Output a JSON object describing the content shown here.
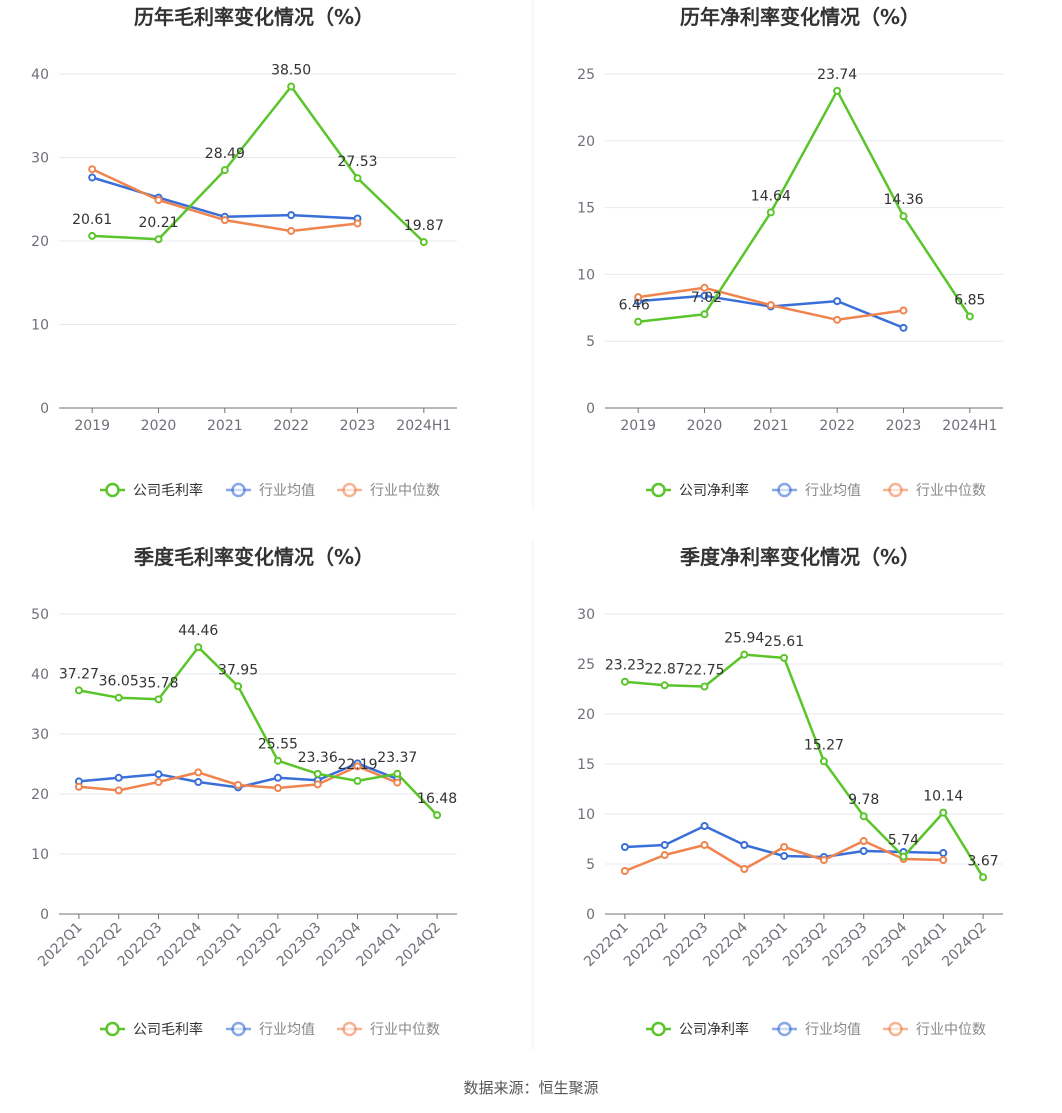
{
  "colors": {
    "company": "#5ac52a",
    "industry_avg": "#3a6fd8",
    "industry_median": "#f0844f"
  },
  "source": "数据来源：恒生聚源",
  "chart_data": [
    {
      "type": "line",
      "title": "历年毛利率变化情况（%）",
      "categories": [
        "2019",
        "2020",
        "2021",
        "2022",
        "2023",
        "2024H1"
      ],
      "ylim": [
        0,
        40
      ],
      "yticks": [
        0,
        10,
        20,
        30,
        40
      ],
      "series": [
        {
          "name": "公司毛利率",
          "values": [
            20.61,
            20.21,
            28.49,
            38.5,
            27.53,
            19.87
          ],
          "labels": [
            "20.61",
            "20.21",
            "28.49",
            "38.50",
            "27.53",
            "19.87"
          ]
        },
        {
          "name": "行业均值",
          "values": [
            27.6,
            25.2,
            22.9,
            23.1,
            22.7,
            null
          ]
        },
        {
          "name": "行业中位数",
          "values": [
            28.6,
            24.9,
            22.5,
            21.2,
            22.1,
            null
          ]
        }
      ]
    },
    {
      "type": "line",
      "title": "历年净利率变化情况（%）",
      "categories": [
        "2019",
        "2020",
        "2021",
        "2022",
        "2023",
        "2024H1"
      ],
      "ylim": [
        0,
        25
      ],
      "yticks": [
        0,
        5,
        10,
        15,
        20,
        25
      ],
      "series": [
        {
          "name": "公司净利率",
          "values": [
            6.46,
            7.02,
            14.64,
            23.74,
            14.36,
            6.85
          ],
          "labels": [
            "6.46",
            "7.02",
            "14.64",
            "23.74",
            "14.36",
            "6.85"
          ]
        },
        {
          "name": "行业均值",
          "values": [
            8.0,
            8.4,
            7.6,
            8.0,
            6.0,
            null
          ]
        },
        {
          "name": "行业中位数",
          "values": [
            8.3,
            9.0,
            7.7,
            6.6,
            7.3,
            null
          ]
        }
      ]
    },
    {
      "type": "line",
      "title": "季度毛利率变化情况（%）",
      "categories": [
        "2022Q1",
        "2022Q2",
        "2022Q3",
        "2022Q4",
        "2023Q1",
        "2023Q2",
        "2023Q3",
        "2023Q4",
        "2024Q1",
        "2024Q2"
      ],
      "ylim": [
        0,
        50
      ],
      "yticks": [
        0,
        10,
        20,
        30,
        40,
        50
      ],
      "series": [
        {
          "name": "公司毛利率",
          "values": [
            37.27,
            36.05,
            35.78,
            44.46,
            37.95,
            25.55,
            23.36,
            22.19,
            23.37,
            16.48
          ],
          "labels": [
            "37.27",
            "36.05",
            "35.78",
            "44.46",
            "37.95",
            "25.55",
            "23.36",
            "22.19",
            "23.37",
            "16.48"
          ]
        },
        {
          "name": "行业均值",
          "values": [
            22.1,
            22.7,
            23.3,
            22.0,
            21.1,
            22.7,
            22.3,
            25.1,
            22.5,
            null
          ]
        },
        {
          "name": "行业中位数",
          "values": [
            21.2,
            20.6,
            22.0,
            23.6,
            21.5,
            21.0,
            21.6,
            24.6,
            21.9,
            null
          ]
        }
      ]
    },
    {
      "type": "line",
      "title": "季度净利率变化情况（%）",
      "categories": [
        "2022Q1",
        "2022Q2",
        "2022Q3",
        "2022Q4",
        "2023Q1",
        "2023Q2",
        "2023Q3",
        "2023Q4",
        "2024Q1",
        "2024Q2"
      ],
      "ylim": [
        0,
        30
      ],
      "yticks": [
        0,
        5,
        10,
        15,
        20,
        25,
        30
      ],
      "series": [
        {
          "name": "公司净利率",
          "values": [
            23.23,
            22.87,
            22.75,
            25.94,
            25.61,
            15.27,
            9.78,
            5.74,
            10.14,
            3.67
          ],
          "labels": [
            "23.23",
            "22.87",
            "22.75",
            "25.94",
            "25.61",
            "15.27",
            "9.78",
            "5.74",
            "10.14",
            "3.67"
          ]
        },
        {
          "name": "行业均值",
          "values": [
            6.7,
            6.9,
            8.8,
            6.9,
            5.8,
            5.7,
            6.3,
            6.2,
            6.1,
            null
          ]
        },
        {
          "name": "行业中位数",
          "values": [
            4.3,
            5.9,
            6.9,
            4.5,
            6.7,
            5.4,
            7.3,
            5.5,
            5.4,
            null
          ]
        }
      ]
    }
  ]
}
